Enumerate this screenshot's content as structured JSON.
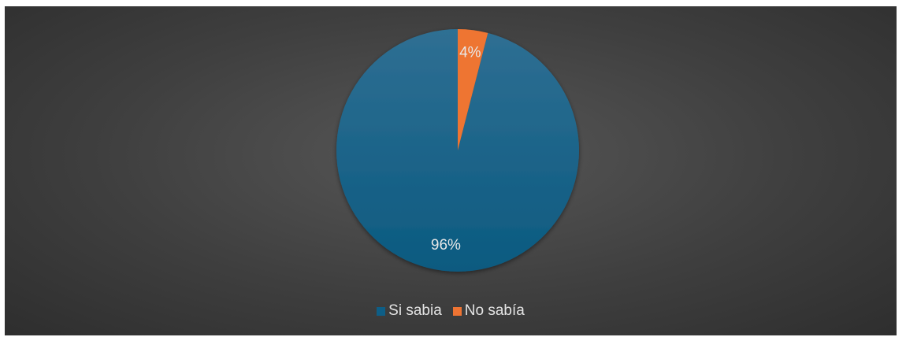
{
  "chart_data": {
    "type": "pie",
    "title": "",
    "categories": [
      "Si sabia",
      "No sabía"
    ],
    "values": [
      96,
      4
    ],
    "data_labels": [
      "96%",
      "4%"
    ],
    "colors": [
      "#0e5e86",
      "#ee7433"
    ],
    "start_angle": "12 o'clock, counterclockwise",
    "legend": {
      "position": "bottom",
      "entries": [
        "Si sabia",
        "No sabía"
      ]
    }
  },
  "frame": {
    "background": "#404040"
  }
}
